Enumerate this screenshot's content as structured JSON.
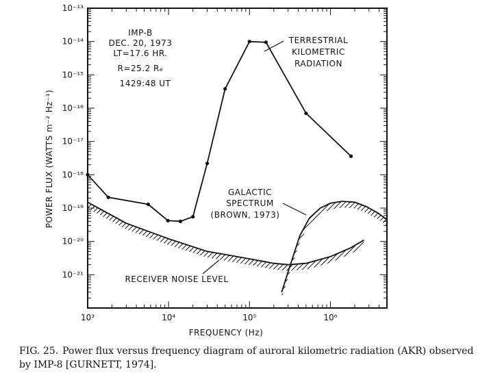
{
  "chart_data": {
    "type": "line",
    "xscale": "log",
    "yscale": "log",
    "xlim": [
      1000,
      5000000
    ],
    "ylim": [
      1e-22,
      1e-13
    ],
    "xlabel": "FREQUENCY (Hz)",
    "ylabel": "POWER FLUX (WATTS m⁻² Hz⁻¹)",
    "x_ticks": [
      {
        "value": 1000,
        "label": "10³"
      },
      {
        "value": 10000,
        "label": "10⁴"
      },
      {
        "value": 100000,
        "label": "10⁵"
      },
      {
        "value": 1000000,
        "label": "10⁶"
      }
    ],
    "y_ticks": [
      {
        "value": 1e-13,
        "label": "10⁻¹³"
      },
      {
        "value": 1e-14,
        "label": "10⁻¹⁴"
      },
      {
        "value": 1e-15,
        "label": "10⁻¹⁵"
      },
      {
        "value": 1e-16,
        "label": "10⁻¹⁶"
      },
      {
        "value": 1e-17,
        "label": "10⁻¹⁷"
      },
      {
        "value": 1e-18,
        "label": "10⁻¹⁸"
      },
      {
        "value": 1e-19,
        "label": "10⁻¹⁹"
      },
      {
        "value": 1e-20,
        "label": "10⁻²⁰"
      },
      {
        "value": 1e-21,
        "label": "10⁻²¹"
      }
    ],
    "series": [
      {
        "name": "TERRESTRIAL KILOMETRIC RADIATION",
        "style": "line-with-points",
        "x": [
          1000,
          1800,
          5600,
          9800,
          14000,
          20000,
          30000,
          50000,
          100000,
          160000,
          500000,
          1800000
        ],
        "y": [
          1e-18,
          2.1e-19,
          1.3e-19,
          4.2e-20,
          4e-20,
          5.5e-20,
          2.2e-18,
          3.8e-16,
          1e-14,
          9.5e-15,
          7e-17,
          3.6e-18
        ]
      },
      {
        "name": "RECEIVER NOISE LEVEL",
        "style": "hatched-curve",
        "x": [
          1000,
          3000,
          10000,
          30000,
          100000,
          200000,
          300000,
          500000,
          1000000,
          1800000,
          2600000
        ],
        "y": [
          1.5e-19,
          3.5e-20,
          1.2e-20,
          5e-21,
          3e-21,
          2.2e-21,
          2e-21,
          2.2e-21,
          3.5e-21,
          6.5e-21,
          1.1e-20
        ]
      },
      {
        "name": "GALACTIC SPECTRUM (BROWN, 1973)",
        "style": "hatched-curve",
        "x": [
          250000,
          320000,
          420000,
          550000,
          750000,
          1000000,
          1400000,
          2000000,
          2800000,
          3900000,
          5000000
        ],
        "y": [
          3e-22,
          2e-21,
          1.5e-20,
          5e-20,
          1e-19,
          1.4e-19,
          1.6e-19,
          1.5e-19,
          1.1e-19,
          7e-20,
          4.5e-20
        ]
      }
    ],
    "annotations": {
      "info_lines": [
        "IMP-B",
        "DEC. 20, 1973",
        "LT=17.6 HR.",
        "R=25.2 Rₑ",
        "1429:48 UT"
      ],
      "terrestrial_lines": [
        "TERRESTRIAL",
        "KILOMETRIC",
        "RADIATION"
      ],
      "galactic_lines": [
        "GALACTIC",
        "SPECTRUM",
        "(BROWN, 1973)"
      ],
      "noise_label": "RECEIVER NOISE LEVEL"
    },
    "grid": false,
    "legend": "none"
  },
  "caption": {
    "figure_label": "FIG. 25.",
    "text": "Power flux versus frequency diagram of auroral kilometric radiation (AKR) observed by IMP-8 [GURNETT, 1974]."
  }
}
